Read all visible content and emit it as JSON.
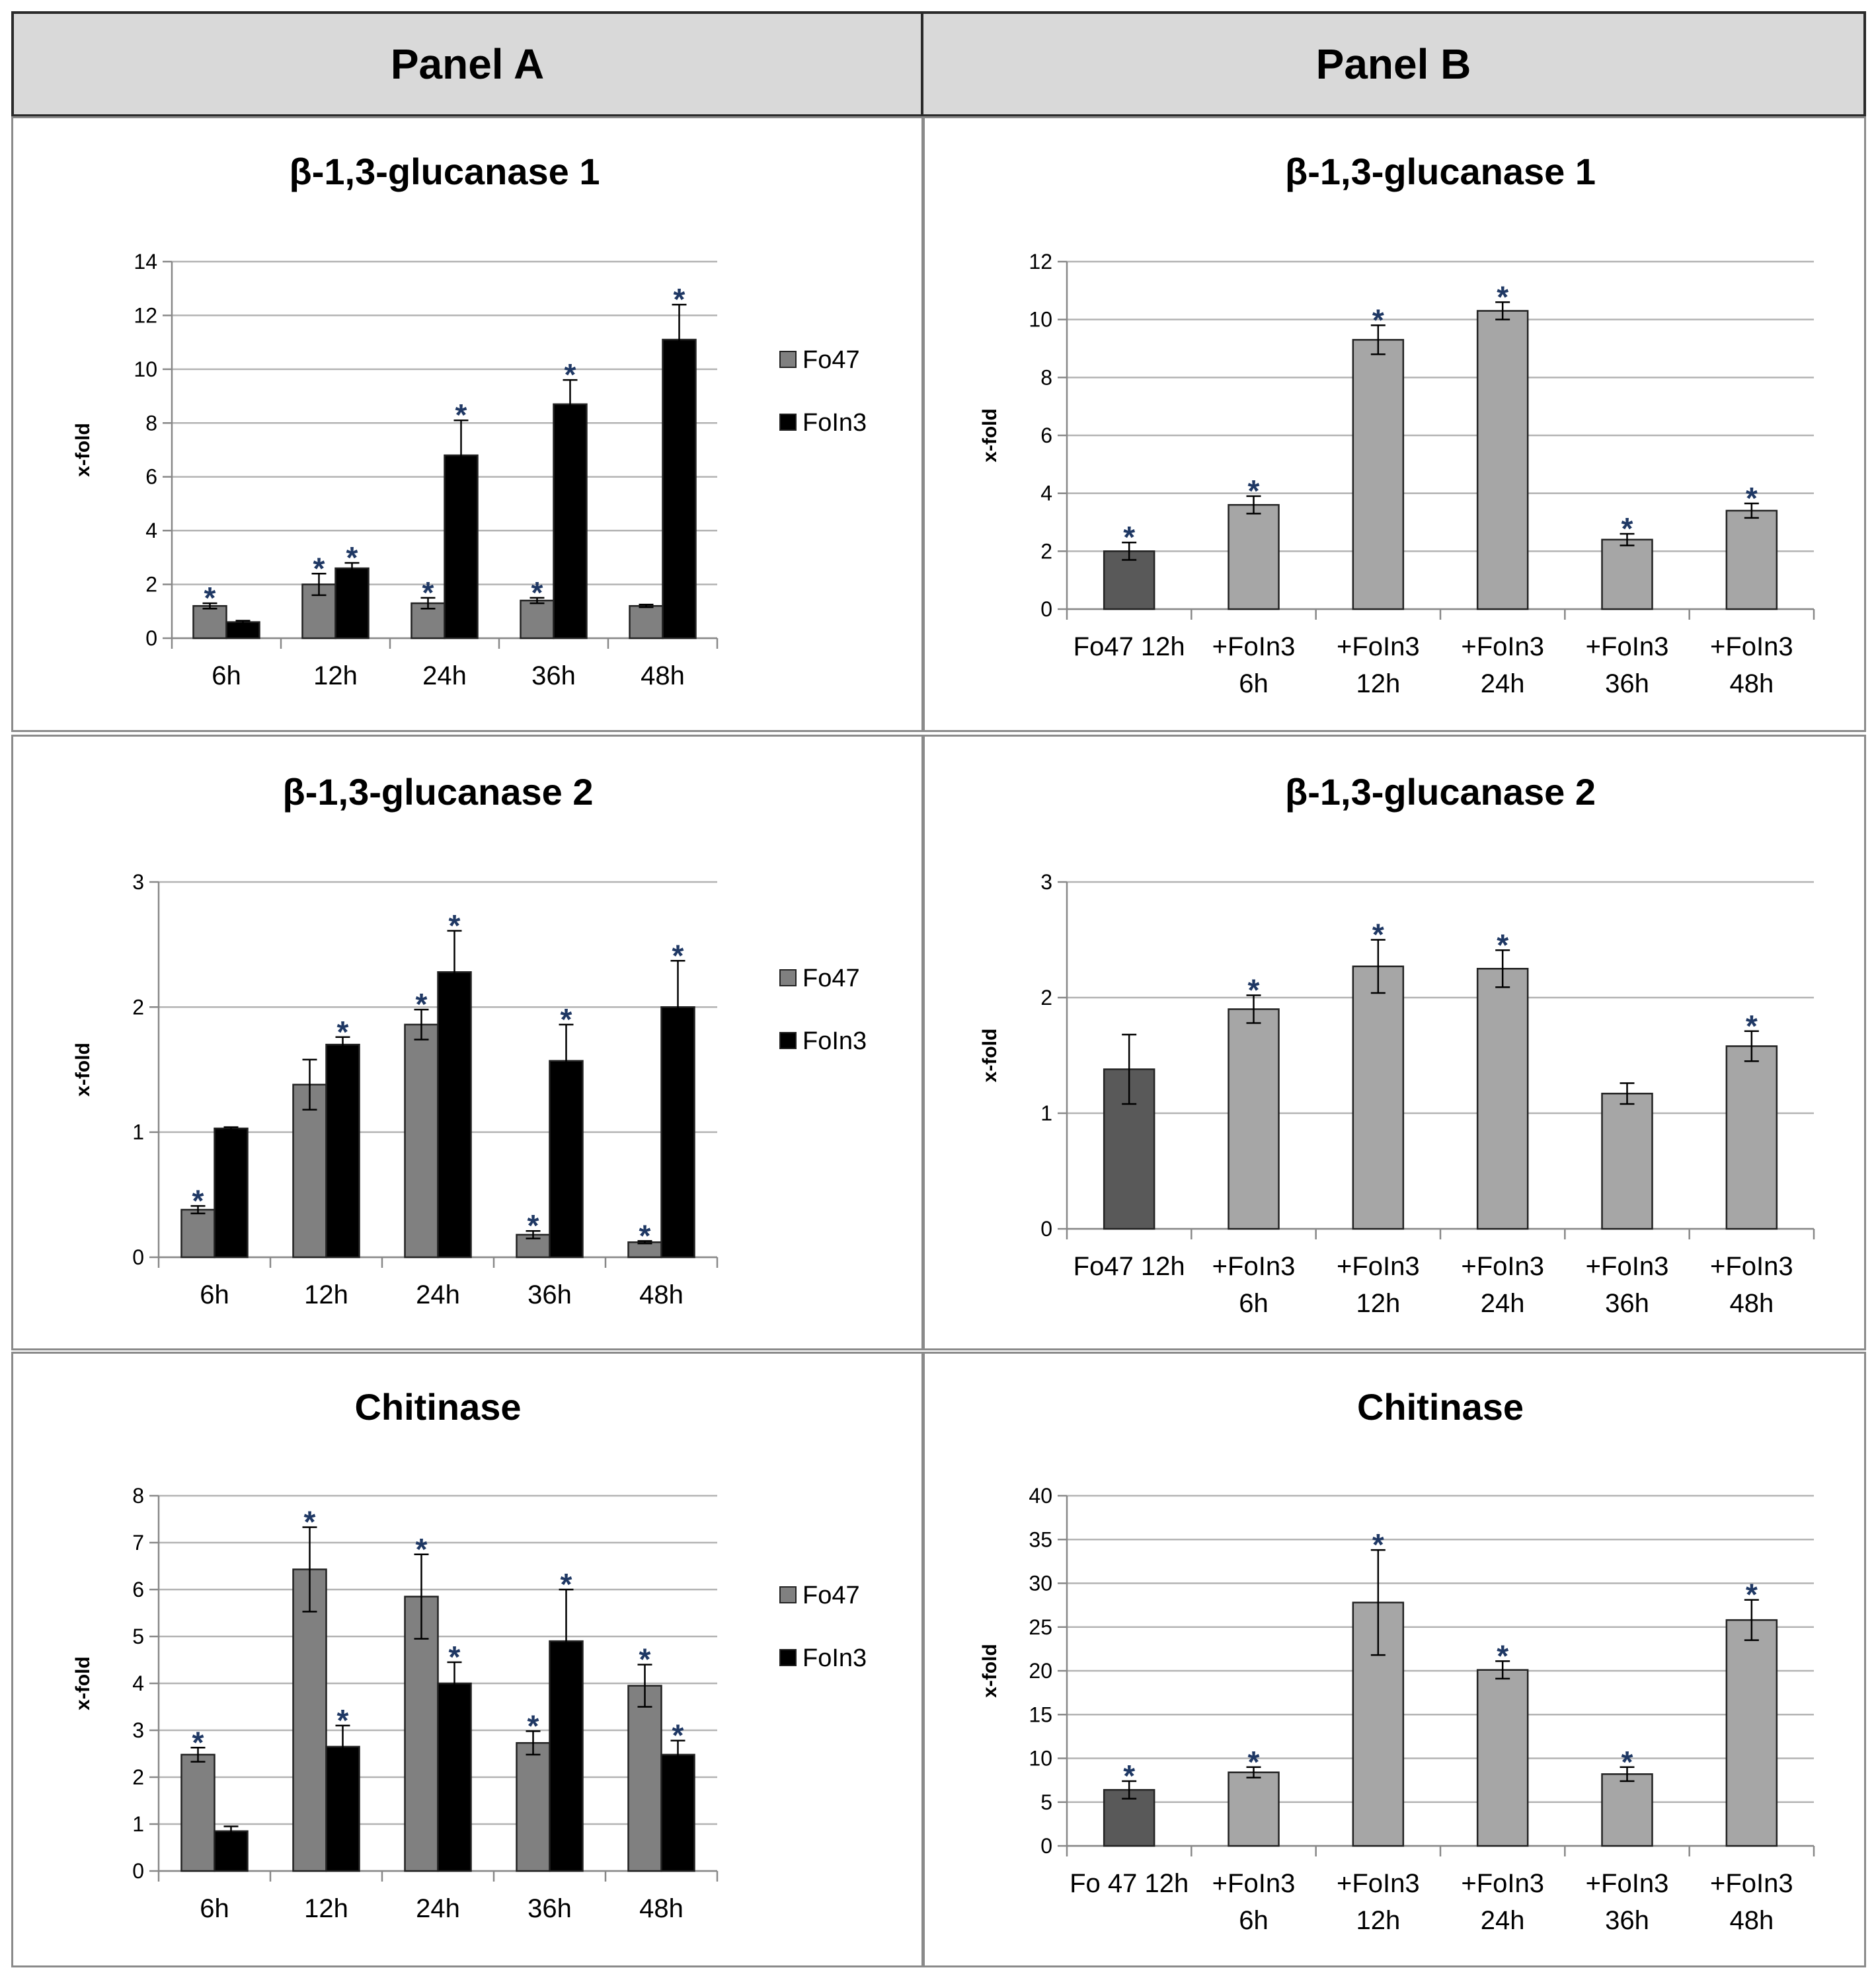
{
  "panels": {
    "a": "Panel A",
    "b": "Panel B"
  },
  "colors": {
    "fo47": "#808080",
    "foln3": "#000000",
    "control": "#595959",
    "treatment": "#a6a6a6",
    "grid": "#b3b3b3",
    "star": "#1f3864"
  },
  "chart_data": [
    {
      "id": "A1",
      "panel": "Panel A",
      "type": "bar",
      "title": "β-1,3-glucanase 1",
      "ylabel": "x-fold",
      "categories": [
        "6h",
        "12h",
        "24h",
        "36h",
        "48h"
      ],
      "ylim": [
        0,
        14
      ],
      "yticks": [
        0,
        2,
        4,
        6,
        8,
        10,
        12,
        14
      ],
      "legend": "right",
      "series": [
        {
          "name": "Fo47",
          "color": "#808080",
          "values": [
            1.2,
            2.0,
            1.3,
            1.4,
            1.2
          ],
          "errors": [
            0.1,
            0.4,
            0.2,
            0.1,
            0.05
          ],
          "sig": [
            true,
            true,
            true,
            true,
            false
          ]
        },
        {
          "name": "FoIn3",
          "color": "#000000",
          "values": [
            0.6,
            2.6,
            6.8,
            8.7,
            11.1
          ],
          "errors": [
            0.05,
            0.2,
            1.3,
            0.9,
            1.3
          ],
          "sig": [
            false,
            true,
            true,
            true,
            true
          ]
        }
      ]
    },
    {
      "id": "B1",
      "panel": "Panel B",
      "type": "bar",
      "title": "β-1,3-glucanase 1",
      "ylabel": "x-fold",
      "categories": [
        "Fo47 12h",
        "+FoIn3\n6h",
        "+FoIn3\n12h",
        "+FoIn3\n24h",
        "+FoIn3\n36h",
        "+FoIn3\n48h"
      ],
      "ylim": [
        0,
        12
      ],
      "yticks": [
        0,
        2,
        4,
        6,
        8,
        10,
        12
      ],
      "values": [
        2.0,
        3.6,
        9.3,
        10.3,
        2.4,
        3.4
      ],
      "errors": [
        0.3,
        0.3,
        0.5,
        0.3,
        0.2,
        0.25
      ],
      "sig": [
        true,
        true,
        true,
        true,
        true,
        true
      ],
      "colors": [
        "#595959",
        "#a6a6a6",
        "#a6a6a6",
        "#a6a6a6",
        "#a6a6a6",
        "#a6a6a6"
      ]
    },
    {
      "id": "A2",
      "panel": "Panel A",
      "type": "bar",
      "title": "β-1,3-glucanase 2",
      "ylabel": "x-fold",
      "categories": [
        "6h",
        "12h",
        "24h",
        "36h",
        "48h"
      ],
      "ylim": [
        0,
        3
      ],
      "yticks": [
        0,
        1,
        2,
        3
      ],
      "legend": "right",
      "series": [
        {
          "name": "Fo47",
          "color": "#808080",
          "values": [
            0.38,
            1.38,
            1.86,
            0.18,
            0.12
          ],
          "errors": [
            0.03,
            0.2,
            0.12,
            0.03,
            0.01
          ],
          "sig": [
            true,
            false,
            true,
            true,
            true
          ]
        },
        {
          "name": "FoIn3",
          "color": "#000000",
          "values": [
            1.03,
            1.7,
            2.28,
            1.57,
            2.0
          ],
          "errors": [
            0.01,
            0.06,
            0.33,
            0.29,
            0.37
          ],
          "sig": [
            false,
            true,
            true,
            true,
            true
          ]
        }
      ]
    },
    {
      "id": "B2",
      "panel": "Panel B",
      "type": "bar",
      "title": "β-1,3-glucanase 2",
      "ylabel": "x-fold",
      "categories": [
        "Fo47 12h",
        "+FoIn3\n6h",
        "+FoIn3\n12h",
        "+FoIn3\n24h",
        "+FoIn3\n36h",
        "+FoIn3\n48h"
      ],
      "ylim": [
        0,
        3
      ],
      "yticks": [
        0,
        1,
        2,
        3
      ],
      "values": [
        1.38,
        1.9,
        2.27,
        2.25,
        1.17,
        1.58
      ],
      "errors": [
        0.3,
        0.12,
        0.23,
        0.16,
        0.09,
        0.13
      ],
      "sig": [
        false,
        true,
        true,
        true,
        false,
        true
      ],
      "colors": [
        "#595959",
        "#a6a6a6",
        "#a6a6a6",
        "#a6a6a6",
        "#a6a6a6",
        "#a6a6a6"
      ]
    },
    {
      "id": "A3",
      "panel": "Panel A",
      "type": "bar",
      "title": "Chitinase",
      "ylabel": "x-fold",
      "categories": [
        "6h",
        "12h",
        "24h",
        "36h",
        "48h"
      ],
      "ylim": [
        0,
        8
      ],
      "yticks": [
        0,
        1,
        2,
        3,
        4,
        5,
        6,
        7,
        8
      ],
      "legend": "right",
      "series": [
        {
          "name": "Fo47",
          "color": "#808080",
          "values": [
            2.48,
            6.43,
            5.85,
            2.73,
            3.95
          ],
          "errors": [
            0.15,
            0.9,
            0.9,
            0.25,
            0.45
          ],
          "sig": [
            true,
            true,
            true,
            true,
            true
          ]
        },
        {
          "name": "FoIn3",
          "color": "#000000",
          "values": [
            0.85,
            2.65,
            4.0,
            4.9,
            2.48
          ],
          "errors": [
            0.1,
            0.45,
            0.45,
            1.1,
            0.3
          ],
          "sig": [
            false,
            true,
            true,
            true,
            true
          ]
        }
      ]
    },
    {
      "id": "B3",
      "panel": "Panel B",
      "type": "bar",
      "title": "Chitinase",
      "ylabel": "x-fold",
      "categories": [
        "Fo 47 12h",
        "+FoIn3\n6h",
        "+FoIn3\n12h",
        "+FoIn3\n24h",
        "+FoIn3\n36h",
        "+FoIn3\n48h"
      ],
      "ylim": [
        0,
        40
      ],
      "yticks": [
        0,
        5,
        10,
        15,
        20,
        25,
        30,
        35,
        40
      ],
      "values": [
        6.4,
        8.4,
        27.8,
        20.1,
        8.2,
        25.8
      ],
      "errors": [
        1.0,
        0.6,
        6.0,
        1.0,
        0.8,
        2.3
      ],
      "sig": [
        true,
        true,
        true,
        true,
        true,
        true
      ],
      "colors": [
        "#595959",
        "#a6a6a6",
        "#a6a6a6",
        "#a6a6a6",
        "#a6a6a6",
        "#a6a6a6"
      ]
    }
  ]
}
